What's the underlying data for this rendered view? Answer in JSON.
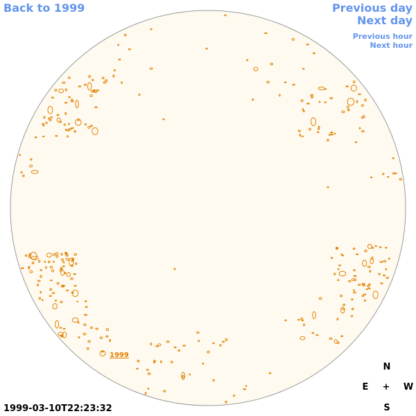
{
  "nav": {
    "back": "Back to 1999",
    "previous_day": "Previous day",
    "next_day": "Next day",
    "previous_hour": "Previous hour",
    "next_hour": "Next hour"
  },
  "compass": {
    "north": "N",
    "east": "E",
    "center": "+",
    "west": "W",
    "south": "S"
  },
  "timestamp": "1999-03-10T22:23:32",
  "region_label": "1999",
  "colors": {
    "disk_fill": "#fffaf0",
    "disk_stroke": "#999999",
    "contour": "#e08000",
    "link": "#6495ed"
  }
}
